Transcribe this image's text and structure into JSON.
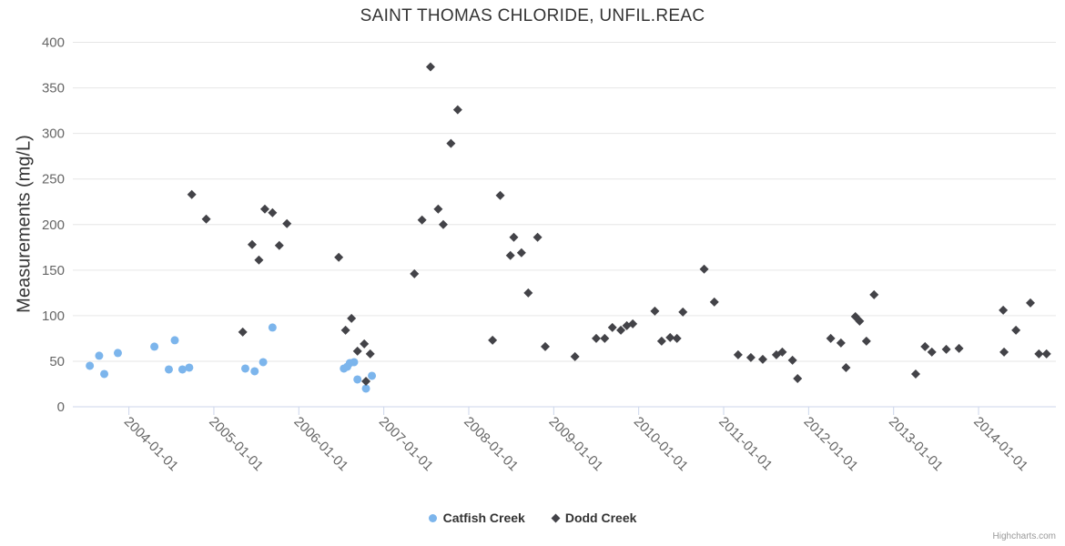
{
  "credit": "Highcharts.com",
  "colors": {
    "series_catfish": "#7cb5ec",
    "series_dodd": "#434348",
    "gridline": "#e6e6e6",
    "axis_line": "#ccd6eb",
    "title_text": "#333333",
    "tick_text": "#666666",
    "credit_text": "#999999"
  },
  "chart_data": {
    "type": "scatter",
    "title": "SAINT THOMAS CHLORIDE, UNFIL.REAC",
    "xlabel": "",
    "ylabel": "Measurements (mg/L)",
    "ylim": [
      0,
      400
    ],
    "xlim": [
      2003.34,
      2014.91
    ],
    "grid": true,
    "legend_position": "bottom-center",
    "y_ticks": [
      0,
      50,
      100,
      150,
      200,
      250,
      300,
      350,
      400
    ],
    "x_ticks": [
      {
        "t": 2004,
        "label": "2004-01-01"
      },
      {
        "t": 2005,
        "label": "2005-01-01"
      },
      {
        "t": 2006,
        "label": "2006-01-01"
      },
      {
        "t": 2007,
        "label": "2007-01-01"
      },
      {
        "t": 2008,
        "label": "2008-01-01"
      },
      {
        "t": 2009,
        "label": "2009-01-01"
      },
      {
        "t": 2010,
        "label": "2010-01-01"
      },
      {
        "t": 2011,
        "label": "2011-01-01"
      },
      {
        "t": 2012,
        "label": "2012-01-01"
      },
      {
        "t": 2013,
        "label": "2013-01-01"
      },
      {
        "t": 2014,
        "label": "2014-01-01"
      }
    ],
    "series": [
      {
        "name": "Catfish Creek",
        "marker": "circle",
        "color": "#7cb5ec",
        "points": [
          [
            2003.54,
            45
          ],
          [
            2003.65,
            56
          ],
          [
            2003.71,
            36
          ],
          [
            2003.87,
            59
          ],
          [
            2004.3,
            66
          ],
          [
            2004.47,
            41
          ],
          [
            2004.54,
            73
          ],
          [
            2004.63,
            41
          ],
          [
            2004.71,
            43
          ],
          [
            2005.37,
            42
          ],
          [
            2005.48,
            39
          ],
          [
            2005.58,
            49
          ],
          [
            2005.69,
            87
          ],
          [
            2006.53,
            42
          ],
          [
            2006.57,
            44
          ],
          [
            2006.6,
            48
          ],
          [
            2006.65,
            49
          ],
          [
            2006.69,
            30
          ],
          [
            2006.79,
            20
          ],
          [
            2006.86,
            34
          ]
        ]
      },
      {
        "name": "Dodd Creek",
        "marker": "diamond",
        "color": "#434348",
        "points": [
          [
            2004.74,
            233
          ],
          [
            2004.91,
            206
          ],
          [
            2005.34,
            82
          ],
          [
            2005.45,
            178
          ],
          [
            2005.53,
            161
          ],
          [
            2005.6,
            217
          ],
          [
            2005.69,
            213
          ],
          [
            2005.77,
            177
          ],
          [
            2005.86,
            201
          ],
          [
            2006.47,
            164
          ],
          [
            2006.55,
            84
          ],
          [
            2006.62,
            97
          ],
          [
            2006.69,
            61
          ],
          [
            2006.77,
            69
          ],
          [
            2006.79,
            28
          ],
          [
            2006.84,
            58
          ],
          [
            2007.36,
            146
          ],
          [
            2007.45,
            205
          ],
          [
            2007.55,
            373
          ],
          [
            2007.64,
            217
          ],
          [
            2007.7,
            200
          ],
          [
            2007.79,
            289
          ],
          [
            2007.87,
            326
          ],
          [
            2008.28,
            73
          ],
          [
            2008.37,
            232
          ],
          [
            2008.49,
            166
          ],
          [
            2008.53,
            186
          ],
          [
            2008.62,
            169
          ],
          [
            2008.7,
            125
          ],
          [
            2008.81,
            186
          ],
          [
            2008.9,
            66
          ],
          [
            2009.25,
            55
          ],
          [
            2009.5,
            75
          ],
          [
            2009.6,
            75
          ],
          [
            2009.69,
            87
          ],
          [
            2009.79,
            84
          ],
          [
            2009.86,
            89
          ],
          [
            2009.93,
            91
          ],
          [
            2010.19,
            105
          ],
          [
            2010.27,
            72
          ],
          [
            2010.37,
            76
          ],
          [
            2010.45,
            75
          ],
          [
            2010.52,
            104
          ],
          [
            2010.77,
            151
          ],
          [
            2010.89,
            115
          ],
          [
            2011.17,
            57
          ],
          [
            2011.32,
            54
          ],
          [
            2011.46,
            52
          ],
          [
            2011.62,
            57
          ],
          [
            2011.69,
            60
          ],
          [
            2011.81,
            51
          ],
          [
            2011.87,
            31
          ],
          [
            2012.26,
            75
          ],
          [
            2012.38,
            70
          ],
          [
            2012.44,
            43
          ],
          [
            2012.55,
            99
          ],
          [
            2012.6,
            94
          ],
          [
            2012.68,
            72
          ],
          [
            2012.77,
            123
          ],
          [
            2013.26,
            36
          ],
          [
            2013.37,
            66
          ],
          [
            2013.45,
            60
          ],
          [
            2013.62,
            63
          ],
          [
            2013.77,
            64
          ],
          [
            2014.29,
            106
          ],
          [
            2014.3,
            60
          ],
          [
            2014.44,
            84
          ],
          [
            2014.61,
            114
          ],
          [
            2014.71,
            58
          ],
          [
            2014.8,
            58
          ]
        ]
      }
    ]
  }
}
